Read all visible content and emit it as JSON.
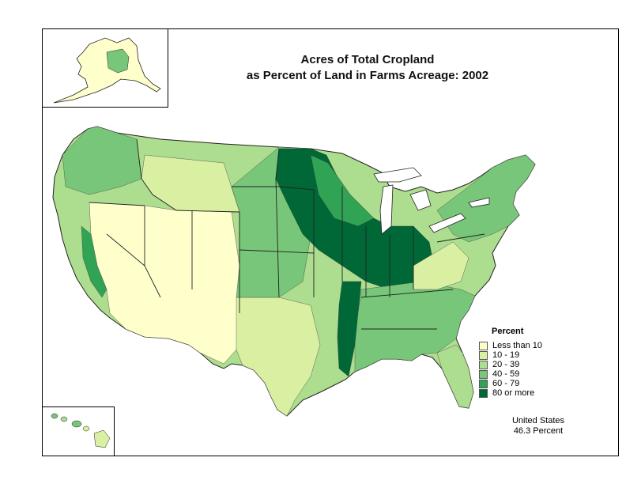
{
  "title": {
    "line1": "Acres of Total Cropland",
    "line2": "as Percent of Land in Farms Acreage:  2002"
  },
  "legend": {
    "title": "Percent",
    "items": [
      {
        "label": "Less than 10",
        "color": "#ffffcc"
      },
      {
        "label": "10 - 19",
        "color": "#d9f0a3"
      },
      {
        "label": "20 - 39",
        "color": "#addd8e"
      },
      {
        "label": "40 - 59",
        "color": "#78c679"
      },
      {
        "label": "60 - 79",
        "color": "#31a354"
      },
      {
        "label": "80 or more",
        "color": "#006837"
      }
    ]
  },
  "summary": {
    "line1": "United States",
    "line2": "46.3 Percent"
  },
  "colors": {
    "border": "#000000",
    "state_lines": "#222222"
  }
}
